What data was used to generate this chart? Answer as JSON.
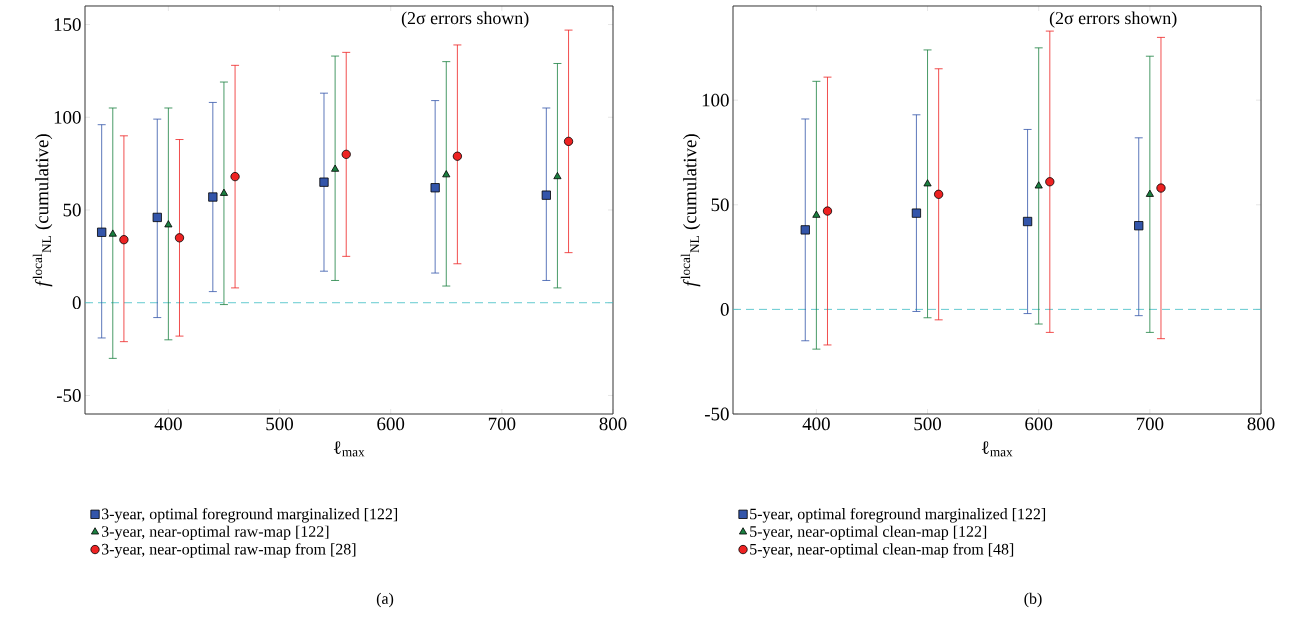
{
  "chart_data": [
    {
      "type": "scatter",
      "xlabel": "ℓ$_{max}$",
      "ylabel": "*f*$^{local}$$_{NL}$ (cumulative)",
      "annotations": [
        "(2σ errors shown)",
        "(a)"
      ],
      "xlim": [
        325,
        800
      ],
      "ylim": [
        -60,
        160
      ],
      "xticks": [
        400,
        500,
        600,
        700,
        800
      ],
      "yticks": [
        -50,
        0,
        50,
        100,
        150
      ],
      "grid": false,
      "legend": "bottom",
      "ref_lines": [
        {
          "axis": "y",
          "value": 0,
          "color": "#3cbcc4",
          "line_style": "dashed"
        }
      ],
      "series": [
        {
          "name": "3-year, optimal foreground marginalized [122]",
          "color": "#3355aa",
          "marker": "square",
          "x": [
            340,
            390,
            440,
            540,
            640,
            740
          ],
          "values": [
            38,
            46,
            57,
            65,
            62,
            58
          ],
          "errors": [
            [
              -19,
              96
            ],
            [
              -8,
              99
            ],
            [
              6,
              108
            ],
            [
              17,
              113
            ],
            [
              16,
              109
            ],
            [
              12,
              105
            ]
          ]
        },
        {
          "name": "3-year, near-optimal raw-map [122]",
          "color": "#1a8040",
          "marker": "triangle",
          "x": [
            350,
            400,
            450,
            550,
            650,
            750
          ],
          "values": [
            37,
            42,
            59,
            72,
            69,
            68
          ],
          "errors": [
            [
              -30,
              105
            ],
            [
              -20,
              105
            ],
            [
              -1,
              119
            ],
            [
              12,
              133
            ],
            [
              9,
              130
            ],
            [
              8,
              129
            ]
          ]
        },
        {
          "name": "3-year, near-optimal raw-map from [28]",
          "color": "#ee2222",
          "marker": "circle",
          "x": [
            360,
            410,
            460,
            560,
            660,
            760
          ],
          "values": [
            34,
            35,
            68,
            80,
            79,
            87
          ],
          "errors": [
            [
              -21,
              90
            ],
            [
              -18,
              88
            ],
            [
              8,
              128
            ],
            [
              25,
              135
            ],
            [
              21,
              139
            ],
            [
              27,
              147
            ]
          ]
        }
      ]
    },
    {
      "type": "scatter",
      "xlabel": "ℓ$_{max}$",
      "ylabel": "*f*$^{local}$$_{NL}$ (cumulative)",
      "annotations": [
        "(2σ errors shown)",
        "(b)"
      ],
      "xlim": [
        325,
        800
      ],
      "ylim": [
        -50,
        145
      ],
      "xticks": [
        400,
        500,
        600,
        700,
        800
      ],
      "yticks": [
        -50,
        0,
        50,
        100
      ],
      "grid": false,
      "legend": "bottom",
      "ref_lines": [
        {
          "axis": "y",
          "value": 0,
          "color": "#3cbcc4",
          "line_style": "dashed"
        }
      ],
      "series": [
        {
          "name": "5-year, optimal foreground marginalized [122]",
          "color": "#3355aa",
          "marker": "square",
          "x": [
            390,
            490,
            590,
            690
          ],
          "values": [
            38,
            46,
            42,
            40
          ],
          "errors": [
            [
              -15,
              91
            ],
            [
              -1,
              93
            ],
            [
              -2,
              86
            ],
            [
              -3,
              82
            ]
          ]
        },
        {
          "name": "5-year, near-optimal clean-map [122]",
          "color": "#1a8040",
          "marker": "triangle",
          "x": [
            400,
            500,
            600,
            700
          ],
          "values": [
            45,
            60,
            59,
            55
          ],
          "errors": [
            [
              -19,
              109
            ],
            [
              -4,
              124
            ],
            [
              -7,
              125
            ],
            [
              -11,
              121
            ]
          ]
        },
        {
          "name": "5-year, near-optimal clean-map from [48]",
          "color": "#ee2222",
          "marker": "circle",
          "x": [
            410,
            510,
            610,
            710
          ],
          "values": [
            47,
            55,
            61,
            58
          ],
          "errors": [
            [
              -17,
              111
            ],
            [
              -5,
              115
            ],
            [
              -11,
              133
            ],
            [
              -14,
              130
            ]
          ]
        }
      ]
    }
  ]
}
